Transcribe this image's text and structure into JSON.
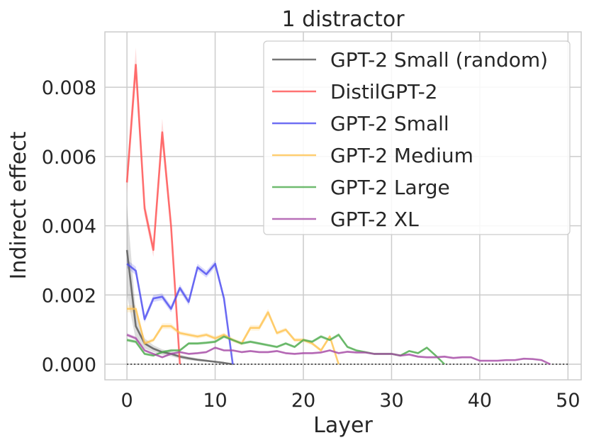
{
  "chart_data": {
    "type": "line",
    "title": "1 distractor",
    "xlabel": "Layer",
    "ylabel": "Indirect effect",
    "xlim": [
      -2.5,
      51.5
    ],
    "ylim": [
      -0.00045,
      0.0096
    ],
    "xticks": [
      0,
      10,
      20,
      30,
      40,
      50
    ],
    "xtick_labels": [
      "0",
      "10",
      "20",
      "30",
      "40",
      "50"
    ],
    "yticks": [
      0.0,
      0.002,
      0.004,
      0.006,
      0.008
    ],
    "ytick_labels": [
      "0.000",
      "0.002",
      "0.004",
      "0.006",
      "0.008"
    ],
    "grid": true,
    "legend_position": "top-right",
    "reference_line": {
      "y": 0,
      "x_range": [
        0,
        50
      ],
      "style": "dotted"
    },
    "series": [
      {
        "name": "GPT-2 Small (random)",
        "color": "#555555",
        "x": [
          0,
          1,
          2,
          3,
          4,
          5,
          6,
          7,
          8,
          9,
          10,
          11,
          12
        ],
        "values": [
          0.0033,
          0.0011,
          0.0006,
          0.00045,
          0.00035,
          0.0003,
          0.00022,
          0.00017,
          0.00013,
          0.0001,
          7e-05,
          4e-05,
          0.0
        ],
        "band": [
          0.0013,
          0.0004,
          0.00015,
          0.0001,
          8e-05,
          7e-05,
          6e-05,
          5e-05,
          4e-05,
          3e-05,
          2e-05,
          2e-05,
          0.0
        ]
      },
      {
        "name": "DistilGPT-2",
        "color": "#ff5050",
        "x": [
          0,
          1,
          2,
          3,
          4,
          5,
          6
        ],
        "values": [
          0.00525,
          0.00865,
          0.0045,
          0.0033,
          0.0067,
          0.004,
          0.0
        ],
        "band": [
          0.0003,
          0.0005,
          0.0002,
          0.0002,
          0.0004,
          0.0002,
          0.0
        ]
      },
      {
        "name": "GPT-2 Small",
        "color": "#4b4bf0",
        "x": [
          0,
          1,
          2,
          3,
          4,
          5,
          6,
          7,
          8,
          9,
          10,
          11,
          12
        ],
        "values": [
          0.0029,
          0.0027,
          0.0013,
          0.0019,
          0.00195,
          0.0016,
          0.0022,
          0.0018,
          0.0028,
          0.0026,
          0.0029,
          0.0019,
          0.0
        ],
        "band": [
          0.00012,
          0.00012,
          0.0001,
          0.0001,
          0.0001,
          0.0001,
          0.0001,
          0.0001,
          0.0001,
          0.0001,
          0.0001,
          0.0001,
          0.0
        ]
      },
      {
        "name": "GPT-2 Medium",
        "color": "#ffc24d",
        "x": [
          0,
          1,
          2,
          3,
          4,
          5,
          6,
          7,
          8,
          9,
          10,
          11,
          12,
          13,
          14,
          15,
          16,
          17,
          18,
          19,
          20,
          21,
          22,
          23,
          24
        ],
        "values": [
          0.0016,
          0.0016,
          0.0006,
          0.0007,
          0.0011,
          0.0011,
          0.0009,
          0.00085,
          0.0008,
          0.00085,
          0.00075,
          0.00085,
          0.0007,
          0.0006,
          0.00105,
          0.00105,
          0.0015,
          0.0009,
          0.001,
          0.0007,
          0.0007,
          0.0006,
          0.0004,
          0.0008,
          0.0
        ],
        "band": [
          0.0001,
          0.0001,
          6e-05,
          6e-05,
          8e-05,
          8e-05,
          6e-05,
          6e-05,
          6e-05,
          6e-05,
          6e-05,
          6e-05,
          6e-05,
          6e-05,
          8e-05,
          8e-05,
          0.0001,
          6e-05,
          6e-05,
          6e-05,
          6e-05,
          5e-05,
          5e-05,
          6e-05,
          0.0
        ]
      },
      {
        "name": "GPT-2 Large",
        "color": "#4caa4c",
        "x": [
          0,
          1,
          2,
          3,
          4,
          5,
          6,
          7,
          8,
          9,
          10,
          11,
          12,
          13,
          14,
          15,
          16,
          17,
          18,
          19,
          20,
          21,
          22,
          23,
          24,
          25,
          26,
          27,
          28,
          29,
          30,
          31,
          32,
          33,
          34,
          35,
          36
        ],
        "values": [
          0.0007,
          0.00065,
          0.0003,
          0.00025,
          0.00035,
          0.0004,
          0.0004,
          0.0006,
          0.0006,
          0.00062,
          0.00065,
          0.0008,
          0.0007,
          0.0006,
          0.00065,
          0.0006,
          0.00055,
          0.0005,
          0.0006,
          0.0005,
          0.0007,
          0.00065,
          0.0008,
          0.0007,
          0.00085,
          0.0005,
          0.0004,
          0.00035,
          0.0003,
          0.0003,
          0.0003,
          0.00025,
          0.00038,
          0.00032,
          0.00048,
          0.00025,
          0.0
        ],
        "band": [
          5e-05,
          5e-05,
          4e-05,
          3e-05,
          4e-05,
          4e-05,
          4e-05,
          4e-05,
          4e-05,
          4e-05,
          4e-05,
          5e-05,
          4e-05,
          4e-05,
          4e-05,
          4e-05,
          4e-05,
          4e-05,
          4e-05,
          4e-05,
          4e-05,
          4e-05,
          5e-05,
          4e-05,
          5e-05,
          4e-05,
          3e-05,
          3e-05,
          3e-05,
          3e-05,
          3e-05,
          3e-05,
          3e-05,
          3e-05,
          3e-05,
          3e-05,
          0.0
        ]
      },
      {
        "name": "GPT-2 XL",
        "color": "#a64ca6",
        "x": [
          0,
          1,
          2,
          3,
          4,
          5,
          6,
          7,
          8,
          9,
          10,
          11,
          12,
          13,
          14,
          15,
          16,
          17,
          18,
          19,
          20,
          21,
          22,
          23,
          24,
          25,
          26,
          27,
          28,
          29,
          30,
          31,
          32,
          33,
          34,
          35,
          36,
          37,
          38,
          39,
          40,
          41,
          42,
          43,
          44,
          45,
          46,
          47,
          48
        ],
        "values": [
          0.00085,
          0.00075,
          0.0004,
          0.0003,
          0.0002,
          0.0003,
          0.00035,
          0.0003,
          0.00032,
          0.00035,
          0.00048,
          0.0004,
          0.0004,
          0.00035,
          0.00038,
          0.00035,
          0.00035,
          0.00038,
          0.00032,
          0.0003,
          0.00032,
          0.00032,
          0.00034,
          0.0004,
          0.00032,
          0.00036,
          0.00034,
          0.00034,
          0.0003,
          0.0003,
          0.0003,
          0.00025,
          0.00028,
          0.00022,
          0.0002,
          0.0002,
          0.00022,
          0.00018,
          0.0002,
          0.0002,
          0.0001,
          0.0001,
          0.0001,
          0.00012,
          0.00012,
          0.00016,
          0.00015,
          0.00012,
          0.0
        ],
        "band": [
          5e-05,
          5e-05,
          3e-05,
          3e-05,
          3e-05,
          3e-05,
          3e-05,
          3e-05,
          3e-05,
          3e-05,
          3e-05,
          3e-05,
          3e-05,
          3e-05,
          3e-05,
          3e-05,
          3e-05,
          3e-05,
          3e-05,
          3e-05,
          3e-05,
          3e-05,
          3e-05,
          3e-05,
          3e-05,
          3e-05,
          3e-05,
          3e-05,
          3e-05,
          3e-05,
          3e-05,
          3e-05,
          3e-05,
          3e-05,
          3e-05,
          3e-05,
          3e-05,
          3e-05,
          3e-05,
          3e-05,
          2e-05,
          2e-05,
          2e-05,
          2e-05,
          2e-05,
          2e-05,
          2e-05,
          2e-05,
          0.0
        ]
      }
    ]
  }
}
